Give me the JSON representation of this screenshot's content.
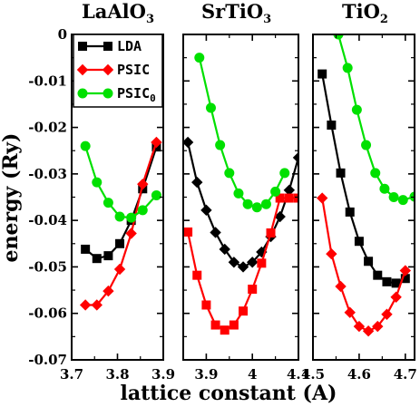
{
  "chart_data": [
    {
      "type": "line",
      "title": "LaAlO3",
      "title_main": "LaAlO",
      "title_sub": "3",
      "xlim": [
        3.7,
        3.9
      ],
      "ylim": [
        -0.07,
        0
      ],
      "xticks": [
        3.7,
        3.8,
        3.9
      ],
      "xtick_labels": [
        "3.7",
        "3.8",
        "3.9"
      ],
      "yticks": [
        0,
        -0.01,
        -0.02,
        -0.03,
        -0.04,
        -0.05,
        -0.06,
        -0.07
      ],
      "ytick_labels": [
        "0",
        "-0.01",
        "-0.02",
        "-0.03",
        "-0.04",
        "-0.05",
        "-0.06",
        "-0.07"
      ],
      "series": [
        {
          "name": "LDA",
          "marker": "square",
          "color": "#000000",
          "x": [
            3.73,
            3.755,
            3.78,
            3.805,
            3.83,
            3.855,
            3.885
          ],
          "y": [
            -0.0462,
            -0.0482,
            -0.0476,
            -0.045,
            -0.04,
            -0.0332,
            -0.0242
          ]
        },
        {
          "name": "PSIC",
          "marker": "diamond",
          "color": "#ff0000",
          "x": [
            3.73,
            3.755,
            3.78,
            3.805,
            3.83,
            3.855,
            3.885
          ],
          "y": [
            -0.0582,
            -0.0582,
            -0.0552,
            -0.0505,
            -0.0428,
            -0.0322,
            -0.0232
          ]
        },
        {
          "name": "PSIC0",
          "marker": "circle",
          "color": "#00e000",
          "x": [
            3.73,
            3.755,
            3.78,
            3.805,
            3.83,
            3.855,
            3.885
          ],
          "y": [
            -0.024,
            -0.0318,
            -0.0362,
            -0.0392,
            -0.0394,
            -0.0378,
            -0.0346
          ]
        }
      ]
    },
    {
      "type": "line",
      "title": "SrTiO3",
      "title_main": "SrTiO",
      "title_sub": "3",
      "xlim": [
        3.85,
        4.1
      ],
      "ylim": [
        -0.07,
        0
      ],
      "xticks": [
        3.9,
        4.0,
        4.1
      ],
      "xtick_labels": [
        "3.9",
        "4",
        "4.1"
      ],
      "series": [
        {
          "name": "LDA",
          "marker": "diamond",
          "color": "#000000",
          "x": [
            3.86,
            3.88,
            3.9,
            3.92,
            3.94,
            3.96,
            3.98,
            4.0,
            4.02,
            4.04,
            4.06,
            4.08,
            4.1
          ],
          "y": [
            -0.0232,
            -0.0318,
            -0.0378,
            -0.0426,
            -0.0462,
            -0.049,
            -0.05,
            -0.049,
            -0.0468,
            -0.0435,
            -0.0392,
            -0.0335,
            -0.0265
          ]
        },
        {
          "name": "PSIC",
          "marker": "square",
          "color": "#ff0000",
          "x": [
            3.86,
            3.88,
            3.9,
            3.92,
            3.94,
            3.96,
            3.98,
            4.0,
            4.02,
            4.04,
            4.06,
            4.08,
            4.1
          ],
          "y": [
            -0.0425,
            -0.0518,
            -0.0582,
            -0.0625,
            -0.0636,
            -0.0625,
            -0.0595,
            -0.0548,
            -0.0492,
            -0.0427,
            -0.0352,
            -0.0352,
            -0.0352
          ]
        },
        {
          "name": "PSIC0",
          "marker": "circle",
          "color": "#00e000",
          "x": [
            3.885,
            3.91,
            3.93,
            3.95,
            3.97,
            3.99,
            4.01,
            4.03,
            4.05,
            4.07
          ],
          "y": [
            -0.005,
            -0.0158,
            -0.0238,
            -0.0298,
            -0.0342,
            -0.0365,
            -0.0372,
            -0.0365,
            -0.0338,
            -0.0298
          ]
        }
      ]
    },
    {
      "type": "line",
      "title": "TiO2",
      "title_main": "TiO",
      "title_sub": "2",
      "xlim": [
        4.5,
        4.72
      ],
      "ylim": [
        -0.07,
        0
      ],
      "xticks": [
        4.5,
        4.6,
        4.7
      ],
      "xtick_labels": [
        "4.5",
        "4.6",
        "4.7"
      ],
      "series": [
        {
          "name": "LDA",
          "marker": "square",
          "color": "#000000",
          "x": [
            4.52,
            4.54,
            4.56,
            4.58,
            4.6,
            4.62,
            4.64,
            4.66,
            4.68,
            4.7
          ],
          "y": [
            -0.0085,
            -0.0195,
            -0.0298,
            -0.0382,
            -0.0445,
            -0.0488,
            -0.0518,
            -0.0532,
            -0.0535,
            -0.0525
          ]
        },
        {
          "name": "PSIC",
          "marker": "diamond",
          "color": "#ff0000",
          "x": [
            4.52,
            4.54,
            4.56,
            4.58,
            4.6,
            4.62,
            4.64,
            4.66,
            4.68,
            4.7
          ],
          "y": [
            -0.0352,
            -0.0472,
            -0.0542,
            -0.0598,
            -0.0628,
            -0.0638,
            -0.0628,
            -0.0602,
            -0.0565,
            -0.0508
          ]
        },
        {
          "name": "PSIC0",
          "marker": "circle",
          "color": "#00e000",
          "x": [
            4.555,
            4.575,
            4.595,
            4.615,
            4.635,
            4.655,
            4.675,
            4.695,
            4.72
          ],
          "y": [
            0.0,
            -0.0072,
            -0.0162,
            -0.0238,
            -0.0298,
            -0.0332,
            -0.035,
            -0.0356,
            -0.0349
          ]
        }
      ]
    }
  ],
  "axes": {
    "ylabel": "energy (Ry)",
    "xlabel": "lattice constant (A)"
  },
  "legend": {
    "items": [
      {
        "label": "LDA",
        "marker": "square",
        "color": "#000000"
      },
      {
        "label": "PSIC",
        "marker": "diamond",
        "color": "#ff0000"
      },
      {
        "label": "PSIC",
        "sub": "0",
        "marker": "circle",
        "color": "#00e000"
      }
    ]
  }
}
